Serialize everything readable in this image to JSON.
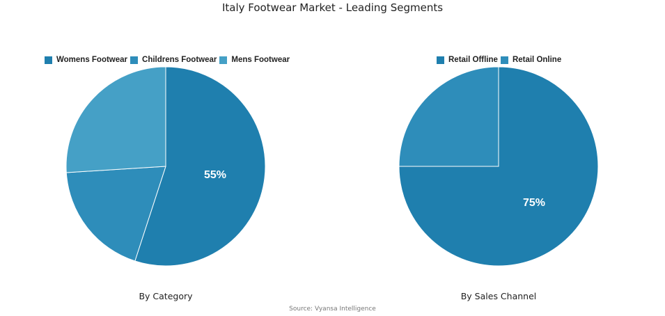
{
  "title": "Italy Footwear Market - Leading Segments",
  "source": "Source: Vyansa Intelligence",
  "chart_data": [
    {
      "type": "pie",
      "title": "By Category",
      "categories": [
        "Womens Footwear",
        "Childrens Footwear",
        "Mens Footwear"
      ],
      "values": [
        55,
        19,
        26
      ],
      "colors": [
        "#1f7fae",
        "#2e8dba",
        "#45a0c6"
      ],
      "data_labels": [
        "55%",
        "",
        ""
      ],
      "legend_position": "top"
    },
    {
      "type": "pie",
      "title": "By Sales Channel",
      "categories": [
        "Retail Offline",
        "Retail Online"
      ],
      "values": [
        75,
        25
      ],
      "colors": [
        "#1f7fae",
        "#2e8dba"
      ],
      "data_labels": [
        "75%",
        ""
      ],
      "legend_position": "top"
    }
  ],
  "left": {
    "subtitle": "By Category",
    "legend": [
      "Womens Footwear",
      "Childrens Footwear",
      "Mens Footwear"
    ],
    "label": "55%"
  },
  "right": {
    "subtitle": "By Sales Channel",
    "legend": [
      "Retail Offline",
      "Retail Online"
    ],
    "label": "75%"
  }
}
